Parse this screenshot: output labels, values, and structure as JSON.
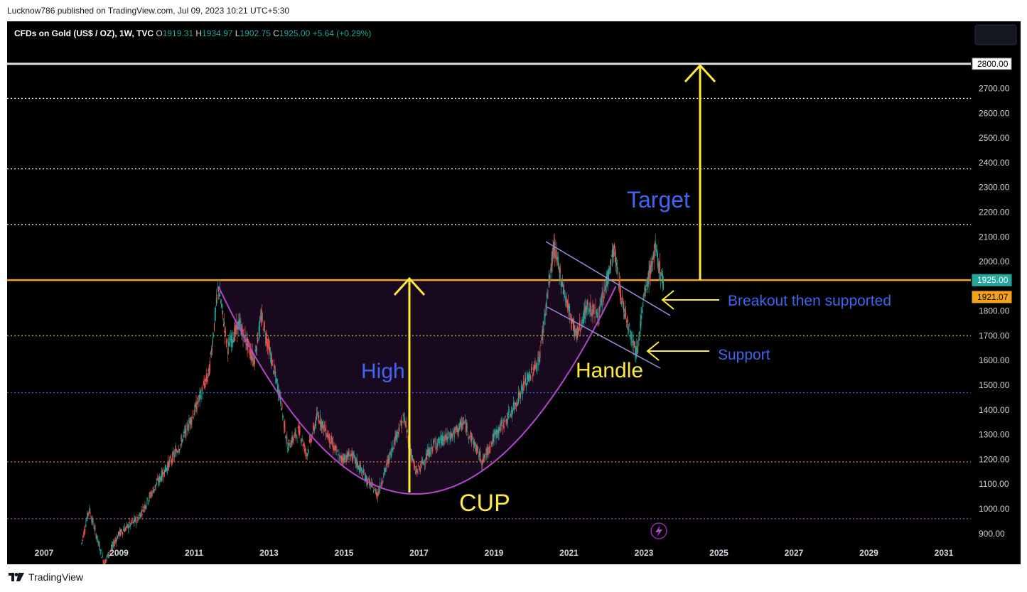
{
  "publisher": "Lucknow786 published on TradingView.com, Jul 09, 2023 10:21 UTC+5:30",
  "footer": {
    "brand": "TradingView",
    "logo_icon": "tradingview-logo-icon"
  },
  "header": {
    "symbol": "CFDs on Gold (US$ / OZ), 1W, TVC",
    "open_label": "O",
    "open": "1919.31",
    "high_label": "H",
    "high": "1934.97",
    "low_label": "L",
    "low": "1902.75",
    "close_label": "C",
    "close": "1925.00",
    "change": "+5.64 (+0.29%)"
  },
  "colors": {
    "background": "#000000",
    "up": "#26a69a",
    "down": "#ef5350",
    "resistance": "#f7a21b",
    "cup": "#b048c9",
    "arrow": "#ffeb3b",
    "annotation_blue": "#3f65f0",
    "channel": "#9c8ae0"
  },
  "chart_data": {
    "type": "candlestick",
    "title": "CFDs on Gold (US$ / OZ), 1W, TVC",
    "x_ticks": [
      "2007",
      "2009",
      "2011",
      "2013",
      "2015",
      "2017",
      "2019",
      "2021",
      "2023",
      "2025",
      "2027",
      "2029",
      "2031"
    ],
    "y_ticks": [
      "900.00",
      "1000.00",
      "1100.00",
      "1200.00",
      "1300.00",
      "1400.00",
      "1500.00",
      "1600.00",
      "1700.00",
      "1800.00",
      "2000.00",
      "2100.00",
      "2200.00",
      "2300.00",
      "2400.00",
      "2500.00",
      "2600.00",
      "2700.00"
    ],
    "xlim": [
      2006.4,
      2031.9
    ],
    "ylim": [
      862,
      2895
    ],
    "price_path": [
      [
        2008.0,
        860
      ],
      [
        2008.2,
        1000
      ],
      [
        2008.6,
        780
      ],
      [
        2009.0,
        900
      ],
      [
        2009.5,
        960
      ],
      [
        2010.0,
        1100
      ],
      [
        2010.6,
        1250
      ],
      [
        2011.0,
        1390
      ],
      [
        2011.4,
        1550
      ],
      [
        2011.65,
        1900
      ],
      [
        2011.9,
        1650
      ],
      [
        2012.2,
        1750
      ],
      [
        2012.6,
        1600
      ],
      [
        2012.8,
        1780
      ],
      [
        2013.3,
        1450
      ],
      [
        2013.5,
        1250
      ],
      [
        2013.8,
        1320
      ],
      [
        2014.0,
        1220
      ],
      [
        2014.3,
        1380
      ],
      [
        2014.9,
        1200
      ],
      [
        2015.2,
        1220
      ],
      [
        2015.6,
        1120
      ],
      [
        2015.9,
        1060
      ],
      [
        2016.4,
        1300
      ],
      [
        2016.6,
        1370
      ],
      [
        2016.9,
        1150
      ],
      [
        2017.0,
        1160
      ],
      [
        2017.4,
        1260
      ],
      [
        2017.9,
        1300
      ],
      [
        2018.2,
        1350
      ],
      [
        2018.7,
        1190
      ],
      [
        2019.0,
        1290
      ],
      [
        2019.5,
        1400
      ],
      [
        2019.8,
        1500
      ],
      [
        2020.2,
        1600
      ],
      [
        2020.6,
        2060
      ],
      [
        2020.9,
        1860
      ],
      [
        2021.2,
        1700
      ],
      [
        2021.5,
        1820
      ],
      [
        2021.8,
        1780
      ],
      [
        2022.2,
        2050
      ],
      [
        2022.4,
        1850
      ],
      [
        2022.8,
        1630
      ],
      [
        2023.0,
        1850
      ],
      [
        2023.3,
        2050
      ],
      [
        2023.5,
        1920
      ]
    ],
    "levels": [
      {
        "price": 2800.0,
        "style": "solid",
        "color": "#e0e0e0"
      },
      {
        "price": 2660,
        "style": "dotted",
        "color": "#ffffff"
      },
      {
        "price": 2375,
        "style": "dotted",
        "color": "#ffffff"
      },
      {
        "price": 2150,
        "style": "dotted",
        "color": "#ffffff"
      },
      {
        "price": 1925.0,
        "style": "solid",
        "color": "#f7a21b"
      },
      {
        "price": 1700,
        "style": "dotted",
        "color": "#8bc34a"
      },
      {
        "price": 1470,
        "style": "dotted",
        "color": "#3f65f0"
      },
      {
        "price": 1190,
        "style": "dotted",
        "color": "#e57342"
      },
      {
        "price": 960,
        "style": "dotted",
        "color": "#b048c9"
      }
    ],
    "price_labels": [
      {
        "label": "2800.00",
        "price": 2800.0,
        "bg": "#ffffff",
        "fg": "#000000"
      },
      {
        "label": "1925.00",
        "price": 1925.0,
        "bg": "#26a69a",
        "fg": "#ffffff"
      },
      {
        "label": "1921.07",
        "price": 1856.7,
        "bg": "#f7a21b",
        "fg": "#000000"
      }
    ],
    "annotations": [
      {
        "text": "Target",
        "color": "#3f65f0"
      },
      {
        "text": "High",
        "color": "#3f65f0"
      },
      {
        "text": "CUP",
        "color": "#ffeb3b"
      },
      {
        "text": "Handle",
        "color": "#ffeb3b"
      },
      {
        "text": "Breakout then supported",
        "color": "#3f65f0"
      },
      {
        "text": "Support",
        "color": "#3f65f0"
      }
    ]
  }
}
